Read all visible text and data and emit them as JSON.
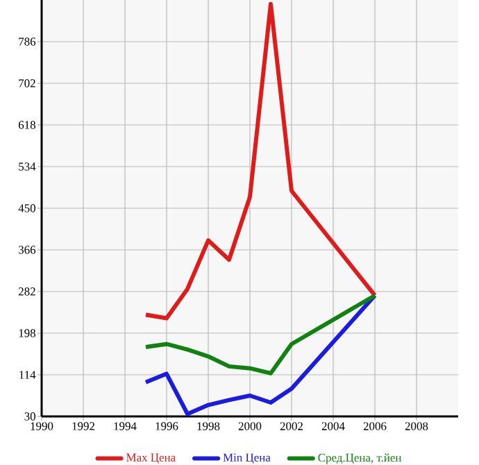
{
  "chart_data": {
    "type": "line",
    "xlim": [
      1990,
      2010
    ],
    "ylim": [
      30,
      870
    ],
    "xticks": [
      1990,
      1992,
      1994,
      1996,
      1998,
      2000,
      2002,
      2004,
      2006,
      2008
    ],
    "yticks": [
      30,
      114,
      198,
      282,
      366,
      450,
      534,
      618,
      702,
      786
    ],
    "grid": true,
    "legend": "bottom",
    "series": [
      {
        "name": "Max Цена",
        "color": "#dd1c1c",
        "x": [
          1995,
          1996,
          1997,
          1998,
          1999,
          2000,
          2001,
          2002,
          2006
        ],
        "values": [
          235,
          228,
          287,
          385,
          346,
          473,
          862,
          485,
          274
        ]
      },
      {
        "name": "Min Цена",
        "color": "#1c1cdd",
        "x": [
          1995,
          1996,
          1997,
          1998,
          1999,
          2000,
          2001,
          2002,
          2006
        ],
        "values": [
          99,
          116,
          35,
          53,
          63,
          72,
          58,
          86,
          274
        ]
      },
      {
        "name": "Сред.Цена, т.йен",
        "color": "#118211",
        "x": [
          1995,
          1996,
          1997,
          1998,
          1999,
          2000,
          2001,
          2002,
          2006
        ],
        "values": [
          170,
          176,
          165,
          151,
          131,
          127,
          117,
          176,
          274
        ]
      }
    ]
  }
}
